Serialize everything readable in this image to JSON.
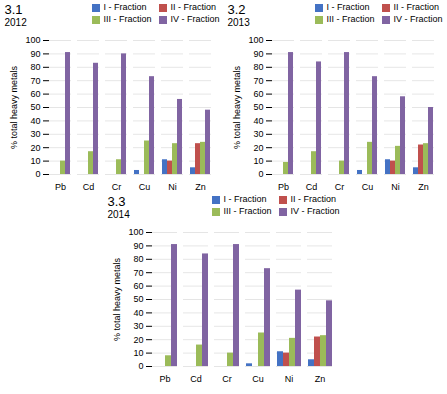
{
  "chart_data": [
    {
      "type": "bar",
      "title": "3.1",
      "subtitle": "2012",
      "categories": [
        "Pb",
        "Cd",
        "Cr",
        "Cu",
        "Ni",
        "Zn"
      ],
      "series": [
        {
          "name": "I - Fraction",
          "color": "#4472c4",
          "values": [
            0,
            0,
            0,
            3,
            11,
            5
          ]
        },
        {
          "name": "II - Fraction",
          "color": "#c0504d",
          "values": [
            0,
            0,
            0,
            0,
            10,
            23
          ]
        },
        {
          "name": "III - Fraction",
          "color": "#9bbb59",
          "values": [
            10,
            17,
            11,
            25,
            23,
            24
          ]
        },
        {
          "name": "IV - Fraction",
          "color": "#8064a2",
          "values": [
            91,
            83,
            90,
            73,
            56,
            48
          ]
        }
      ],
      "ylabel": "% total heavy metals",
      "ylim": [
        0,
        100
      ],
      "yticks": [
        0,
        10,
        20,
        30,
        40,
        50,
        60,
        70,
        80,
        90,
        100
      ],
      "grid": true,
      "legend": "upper right"
    },
    {
      "type": "bar",
      "title": "3.2",
      "subtitle": "2013",
      "categories": [
        "Pb",
        "Cd",
        "Cr",
        "Cu",
        "Ni",
        "Zn"
      ],
      "series": [
        {
          "name": "I - Fraction",
          "color": "#4472c4",
          "values": [
            0,
            0,
            0,
            3,
            11,
            5
          ]
        },
        {
          "name": "II - Fraction",
          "color": "#c0504d",
          "values": [
            0,
            0,
            0,
            0,
            10,
            22
          ]
        },
        {
          "name": "III - Fraction",
          "color": "#9bbb59",
          "values": [
            9,
            17,
            10,
            24,
            21,
            23
          ]
        },
        {
          "name": "IV - Fraction",
          "color": "#8064a2",
          "values": [
            91,
            84,
            91,
            73,
            58,
            50
          ]
        }
      ],
      "ylabel": "% total heavy metals",
      "ylim": [
        0,
        100
      ],
      "yticks": [
        0,
        10,
        20,
        30,
        40,
        50,
        60,
        70,
        80,
        90,
        100
      ],
      "grid": true,
      "legend": "upper right"
    },
    {
      "type": "bar",
      "title": "3.3",
      "subtitle": "2014",
      "categories": [
        "Pb",
        "Cd",
        "Cr",
        "Cu",
        "Ni",
        "Zn"
      ],
      "series": [
        {
          "name": "I - Fraction",
          "color": "#4472c4",
          "values": [
            0,
            0,
            0,
            2,
            11,
            5
          ]
        },
        {
          "name": "II - Fraction",
          "color": "#c0504d",
          "values": [
            0,
            0,
            0,
            0,
            10,
            22
          ]
        },
        {
          "name": "III - Fraction",
          "color": "#9bbb59",
          "values": [
            8,
            16,
            10,
            25,
            21,
            23
          ]
        },
        {
          "name": "IV - Fraction",
          "color": "#8064a2",
          "values": [
            91,
            84,
            91,
            73,
            57,
            49
          ]
        }
      ],
      "ylabel": "% total heavy metals",
      "ylim": [
        0,
        100
      ],
      "yticks": [
        0,
        10,
        20,
        30,
        40,
        50,
        60,
        70,
        80,
        90,
        100
      ],
      "grid": true,
      "legend": "upper right"
    }
  ]
}
